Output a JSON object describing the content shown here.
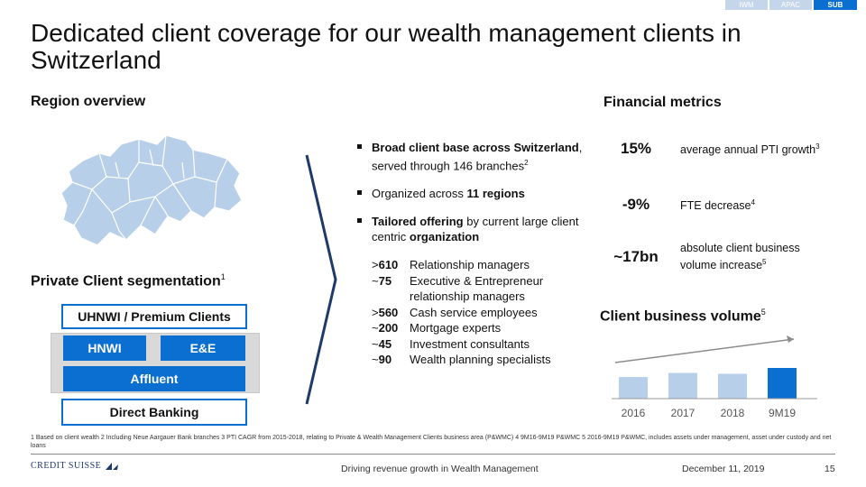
{
  "tabs": [
    {
      "label": "IWM",
      "active": false
    },
    {
      "label": "APAC",
      "active": false
    },
    {
      "label": "SUB",
      "active": true
    }
  ],
  "title": "Dedicated client coverage for our wealth management clients in Switzerland",
  "region_overview": {
    "heading": "Region overview"
  },
  "segmentation": {
    "heading": "Private Client segmentation",
    "heading_note": "1",
    "uhnwi": "UHNWI / Premium Clients",
    "hnwi": "HNWI",
    "ee": "E&E",
    "affluent": "Affluent",
    "direct": "Direct Banking"
  },
  "bullets": {
    "b1_bold": "Broad client base across Switzerland",
    "b1_rest": ", served through 146 branches",
    "b1_note": "2",
    "b2_text": "Organized across ",
    "b2_bold": "11 regions",
    "b3_bold": "Tailored offering",
    "b3_mid": " by current large client centric ",
    "b3_bold2": "organization"
  },
  "stats": [
    {
      "prefix": ">",
      "value": "610",
      "label": "Relationship managers"
    },
    {
      "prefix": "~",
      "value": "75",
      "label": "Executive & Entrepreneur relationship managers"
    },
    {
      "prefix": ">",
      "value": "560",
      "label": "Cash service employees"
    },
    {
      "prefix": "~",
      "value": "200",
      "label": "Mortgage experts"
    },
    {
      "prefix": "~",
      "value": "45",
      "label": "Investment consultants"
    },
    {
      "prefix": "~",
      "value": "90",
      "label": "Wealth planning specialists"
    }
  ],
  "financial": {
    "heading": "Financial metrics",
    "metrics": [
      {
        "value": "15%",
        "desc": "average annual PTI growth",
        "note": "3"
      },
      {
        "value": "-9%",
        "desc": "FTE decrease",
        "note": "4"
      },
      {
        "value": "~17bn",
        "desc": "absolute client business volume increase",
        "note": "5"
      }
    ]
  },
  "chart_heading": "Client business volume",
  "chart_heading_note": "5",
  "chart_data": {
    "type": "bar",
    "categories": [
      "2016",
      "2017",
      "2018",
      "9M19"
    ],
    "values": [
      100,
      119,
      115,
      142
    ],
    "value_scale": "relative, unlabelled",
    "colors": [
      "#b7cfe9",
      "#b7cfe9",
      "#b7cfe9",
      "#0a6fd1"
    ],
    "trend_arrow": true
  },
  "footnote": "1 Based on client wealth   2 Including Neue Aargauer Bank branches   3  PTI CAGR from 2015-2018, relating to Private & Wealth Management Clients business area (P&WMC)   4 9M16-9M19 P&WMC   5 2016-9M19 P&WMC, includes assets under management, asset under custody and net loans",
  "footer": {
    "logo": "CREDIT SUISSE",
    "center": "Driving revenue growth in Wealth Management",
    "date": "December 11, 2019",
    "page": "15"
  },
  "colors": {
    "accent": "#0a6fd1",
    "light_bar": "#b7cfe9",
    "navy": "#1d3a6b"
  }
}
